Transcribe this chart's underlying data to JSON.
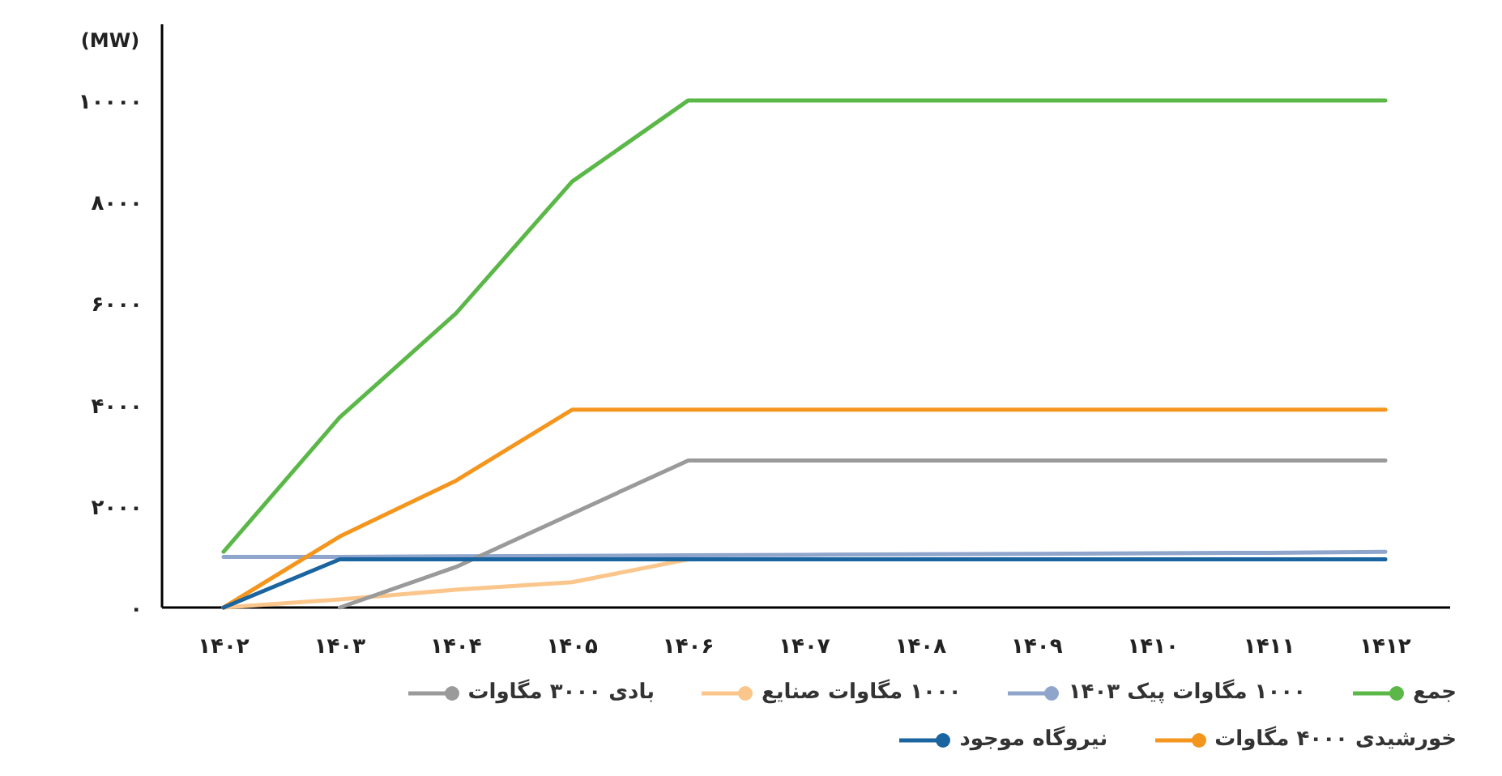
{
  "chart_data": {
    "type": "line",
    "ylabel": "(MW)",
    "categories": [
      "۱۴۰۲",
      "۱۴۰۳",
      "۱۴۰۴",
      "۱۴۰۵",
      "۱۴۰۶",
      "۱۴۰۷",
      "۱۴۰۸",
      "۱۴۰۹",
      "۱۴۱۰",
      "۱۴۱۱",
      "۱۴۱۲"
    ],
    "ylim": [
      0,
      11500
    ],
    "yticks": [
      {
        "value": 0,
        "label": "۰"
      },
      {
        "value": 2000,
        "label": "۲۰۰۰"
      },
      {
        "value": 4000,
        "label": "۴۰۰۰"
      },
      {
        "value": 6000,
        "label": "۶۰۰۰"
      },
      {
        "value": 8000,
        "label": "۸۰۰۰"
      },
      {
        "value": 10000,
        "label": "۱۰۰۰۰"
      }
    ],
    "grid": false,
    "legend": "bottom",
    "marker": "none",
    "line_style": "solid",
    "series": [
      {
        "name": "جمع",
        "color": "#5bb848",
        "values": [
          1100,
          3750,
          5800,
          8400,
          10000,
          10000,
          10000,
          10000,
          10000,
          10000,
          10000
        ]
      },
      {
        "name": "۱۰۰۰ مگاوات پیک ۱۴۰۳",
        "color": "#8fa5cc",
        "values": [
          1000,
          1000,
          1010,
          1020,
          1030,
          1040,
          1050,
          1060,
          1070,
          1080,
          1100
        ]
      },
      {
        "name": "۱۰۰۰ مگاوات صنایع",
        "color": "#fbc68b",
        "values": [
          0,
          160,
          350,
          500,
          950,
          null,
          null,
          null,
          null,
          null,
          null
        ]
      },
      {
        "name": "بادی ۳۰۰۰ مگاوات",
        "color": "#9a9a9a",
        "values": [
          null,
          0,
          800,
          1850,
          2900,
          2900,
          2900,
          2900,
          2900,
          2900,
          2900
        ]
      },
      {
        "name": "خورشیدی ۴۰۰۰ مگاوات",
        "color": "#f4961e",
        "values": [
          0,
          1400,
          2500,
          3900,
          3900,
          3900,
          3900,
          3900,
          3900,
          3900,
          3900
        ]
      },
      {
        "name": "نیروگاه موجود",
        "color": "#1a64a0",
        "values": [
          0,
          950,
          950,
          950,
          950,
          950,
          950,
          950,
          950,
          950,
          950
        ]
      }
    ]
  }
}
